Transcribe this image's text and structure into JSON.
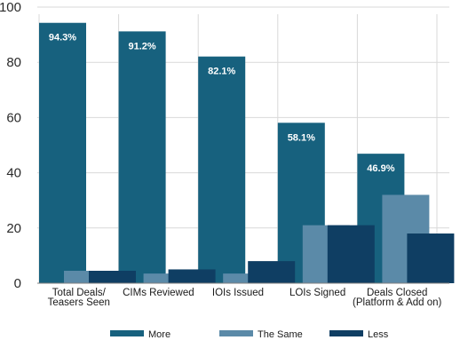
{
  "chart_data": {
    "type": "bar",
    "title": "",
    "xlabel": "",
    "ylabel": "",
    "ylim": [
      0,
      100
    ],
    "yticks": [
      0,
      20,
      40,
      60,
      80,
      100
    ],
    "grid": true,
    "legend_position": "bottom",
    "categories": [
      [
        "Total Deals/",
        "Teasers Seen"
      ],
      [
        "CIMs Reviewed"
      ],
      [
        "IOIs Issued"
      ],
      [
        "LOIs Signed"
      ],
      [
        "Deals Closed",
        "(Platform & Add on)"
      ]
    ],
    "series": [
      {
        "name": "More",
        "color": "#17617e",
        "values": [
          94.3,
          91.2,
          82.1,
          58.1,
          46.9
        ],
        "labels": [
          "94.3%",
          "91.2%",
          "82.1%",
          "58.1%",
          "46.9%"
        ]
      },
      {
        "name": "The Same",
        "color": "#5b8aa8",
        "values": [
          4.5,
          3.5,
          3.5,
          21,
          32
        ]
      },
      {
        "name": "Less",
        "color": "#0f3e63",
        "values": [
          4.5,
          5,
          8,
          21,
          18
        ]
      }
    ]
  }
}
